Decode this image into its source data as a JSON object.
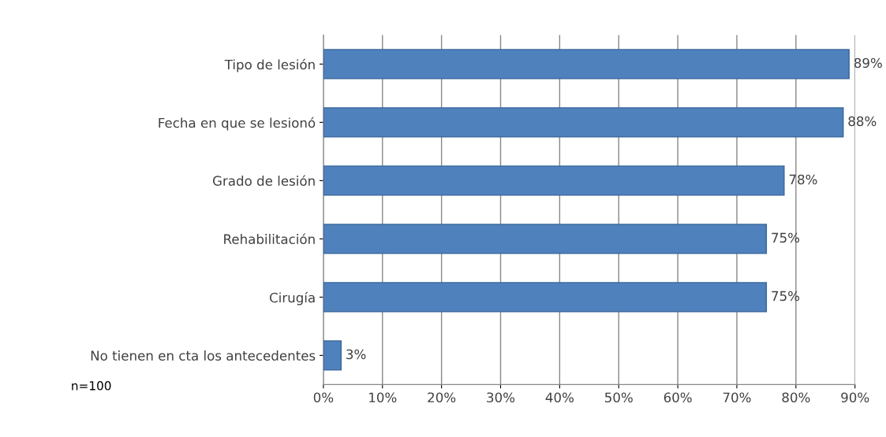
{
  "chart_data": {
    "type": "bar",
    "orientation": "horizontal",
    "categories": [
      "Tipo de lesión",
      "Fecha en que se lesionó",
      "Grado de lesión",
      "Rehabilitación",
      "Cirugía",
      "No tienen en cta los antecedentes"
    ],
    "values": [
      89,
      88,
      78,
      75,
      75,
      3
    ],
    "value_labels": [
      "89%",
      "88%",
      "78%",
      "75%",
      "75%",
      "3%"
    ],
    "color": "#4f81bd",
    "xlim": [
      0,
      90
    ],
    "xticks": [
      {
        "value": 0,
        "label": "0%"
      },
      {
        "value": 10,
        "label": "10%"
      },
      {
        "value": 20,
        "label": "20%"
      },
      {
        "value": 30,
        "label": "30%"
      },
      {
        "value": 40,
        "label": "40%"
      },
      {
        "value": 50,
        "label": "50%"
      },
      {
        "value": 60,
        "label": "60%"
      },
      {
        "value": 70,
        "label": "70%"
      },
      {
        "value": 80,
        "label": "80%"
      },
      {
        "value": 90,
        "label": "90%"
      }
    ],
    "grid": "x",
    "legend": false,
    "annotations": [
      "n=100"
    ]
  }
}
